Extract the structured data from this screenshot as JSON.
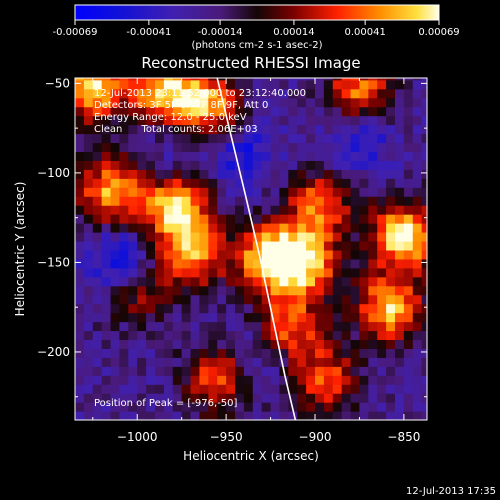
{
  "chart_data": {
    "type": "heatmap",
    "title": "Reconstructed RHESSI Image",
    "xlabel": "Heliocentric X (arcsec)",
    "ylabel": "Heliocentric Y (arcsec)",
    "xlim": [
      -1035,
      -837
    ],
    "ylim": [
      -238,
      -47
    ],
    "xticks": [
      -1000,
      -950,
      -900,
      -850
    ],
    "yticks": [
      -50,
      -100,
      -150,
      -200
    ],
    "colorbar": {
      "ticks": [
        -0.00069,
        -0.00041,
        -0.00014,
        0.00014,
        0.00041,
        0.00069
      ],
      "tick_labels": [
        "-0.00069",
        "-0.00041",
        "-0.00014",
        "0.00014",
        "0.00041",
        "0.00069"
      ],
      "units_label": "(photons cm-2 s-1 asec-2)",
      "range": [
        -0.00069,
        0.00069
      ]
    },
    "annotations": [
      "12-Jul-2013 23:11:52.000 to 23:12:40.000",
      "Detectors: 3F 5F 6F 7F 8F 9F, Att 0",
      "Energy Range: 12.0 - 25.0 keV",
      "Clean      Total counts: 2.06E+03"
    ],
    "peak_label": "Position of Peak = [-976,-50]",
    "limb_curve": {
      "x": [
        -955,
        -947,
        -939,
        -931,
        -924,
        -917,
        -911
      ],
      "y": [
        -47,
        -80,
        -113,
        -147,
        -180,
        -213,
        -238
      ]
    },
    "hot_regions": [
      {
        "x": -1025,
        "y": -52,
        "value": 0.00062
      },
      {
        "x": -985,
        "y": -55,
        "value": 0.00058
      },
      {
        "x": -960,
        "y": -62,
        "value": 0.0005
      },
      {
        "x": -1015,
        "y": -110,
        "value": 0.00052
      },
      {
        "x": -978,
        "y": -120,
        "value": 0.00064
      },
      {
        "x": -968,
        "y": -145,
        "value": 0.00045
      },
      {
        "x": -925,
        "y": -147,
        "value": 0.00068
      },
      {
        "x": -905,
        "y": -150,
        "value": 0.0005
      },
      {
        "x": -898,
        "y": -118,
        "value": 0.0004
      },
      {
        "x": -850,
        "y": -135,
        "value": 0.00069
      },
      {
        "x": -858,
        "y": -175,
        "value": 0.00058
      },
      {
        "x": -875,
        "y": -55,
        "value": 0.00044
      },
      {
        "x": -915,
        "y": -185,
        "value": 0.00042
      },
      {
        "x": -955,
        "y": -215,
        "value": 0.00036
      },
      {
        "x": -895,
        "y": -215,
        "value": 0.00038
      },
      {
        "x": -1000,
        "y": -165,
        "value": 0.0002
      }
    ],
    "cold_regions": [
      {
        "x": -1010,
        "y": -150,
        "value": -0.0006
      },
      {
        "x": -940,
        "y": -90,
        "value": -0.0005
      },
      {
        "x": -875,
        "y": -80,
        "value": -0.00055
      },
      {
        "x": -930,
        "y": -200,
        "value": -0.0004
      },
      {
        "x": -980,
        "y": -85,
        "value": -0.00035
      }
    ]
  },
  "footer": {
    "timestamp": "12-Jul-2013 17:35"
  }
}
